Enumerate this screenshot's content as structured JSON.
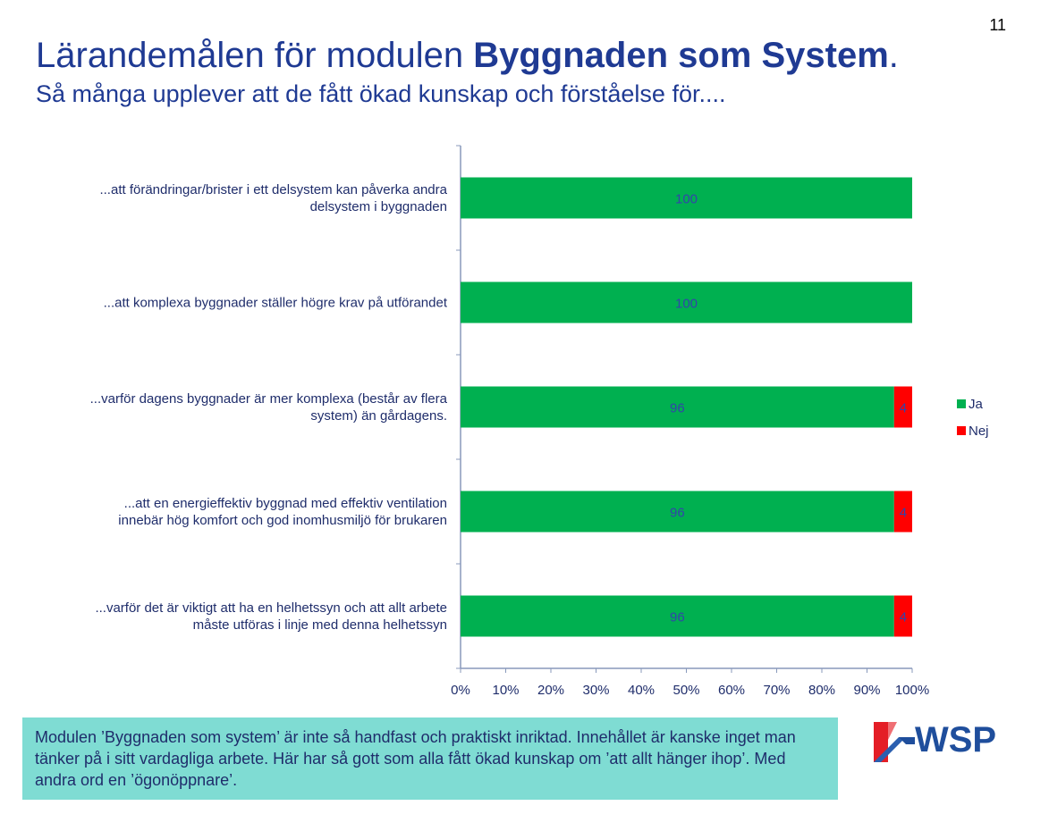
{
  "page_number": "11",
  "title": {
    "prefix": "Lärandemålen för modulen ",
    "bold": "Byggnaden som System",
    "suffix": "."
  },
  "subtitle": "Så många upplever att de fått ökad kunskap och förståelse för....",
  "chart_data": {
    "type": "bar",
    "orientation": "horizontal",
    "stacked": true,
    "categories": [
      [
        "...att förändringar/brister i ett delsystem kan påverka andra",
        "delsystem i byggnaden"
      ],
      [
        "...att komplexa byggnader ställer högre krav på utförandet"
      ],
      [
        "...varför dagens byggnader är mer komplexa (består av flera",
        "system) än gårdagens."
      ],
      [
        "...att en energieffektiv byggnad med effektiv ventilation",
        "innebär hög komfort och god inomhusmiljö för brukaren"
      ],
      [
        "...varför det är viktigt att ha en helhetssyn och att allt arbete",
        "måste utföras i linje med denna helhetssyn"
      ]
    ],
    "series": [
      {
        "name": "Ja",
        "color": "#00b050",
        "values": [
          100,
          100,
          96,
          96,
          96
        ],
        "labels": [
          "100",
          "100",
          "96",
          "96",
          "96"
        ]
      },
      {
        "name": "Nej",
        "color": "#ff0000",
        "values": [
          0,
          0,
          4,
          4,
          4
        ],
        "labels": [
          "",
          "",
          "4",
          "4",
          "4"
        ]
      }
    ],
    "xlim": [
      0,
      100
    ],
    "x_ticks": [
      "0%",
      "10%",
      "20%",
      "30%",
      "40%",
      "50%",
      "60%",
      "70%",
      "80%",
      "90%",
      "100%"
    ],
    "legend_position": "right",
    "grid": false
  },
  "note": "Modulen ’Byggnaden som system’ är inte så handfast och praktiskt inriktad. Innehållet är kanske inget man tänker på i sitt vardagliga arbete. Här har så gott som alla fått ökad kunskap om ’att allt hänger ihop’. Med andra ord en ’ögonöppnare’.",
  "logo": {
    "text": "WSP",
    "color": "#1f4e9c"
  }
}
